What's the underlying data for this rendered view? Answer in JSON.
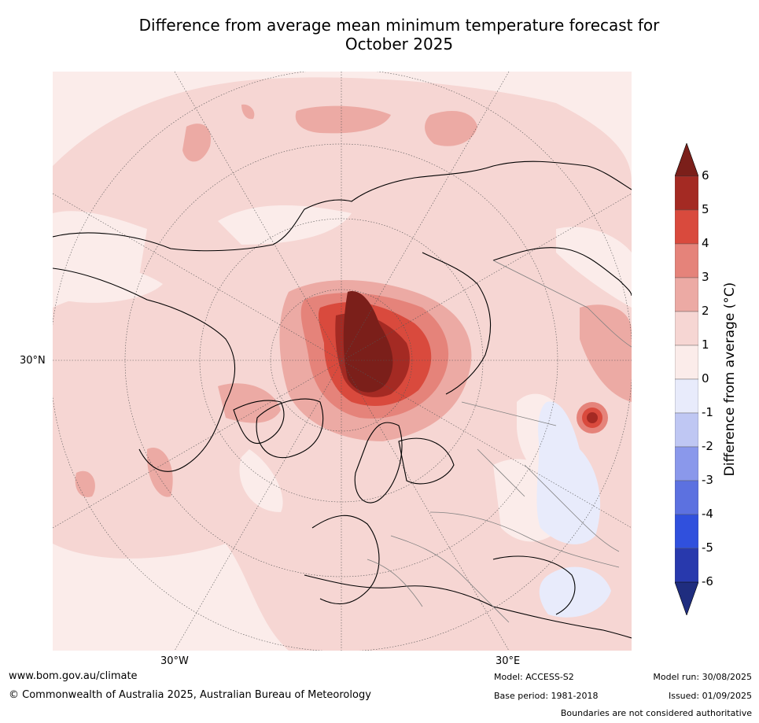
{
  "title_line1": "Difference from average mean minimum temperature forecast for",
  "title_line2": "October 2025",
  "map": {
    "lat_label": "30°N",
    "lon_label_west": "30°W",
    "lon_label_east": "30°E",
    "projection": "north polar stereographic",
    "land_color": "#f6d6d3",
    "ocean_color": "#fbecea",
    "coastline_color": "#000000",
    "border_color": "#808080"
  },
  "colorbar": {
    "label": "Difference from average (°C)",
    "ticks": [
      "6",
      "5",
      "4",
      "3",
      "2",
      "1",
      "0",
      "-1",
      "-2",
      "-3",
      "-4",
      "-5",
      "-6"
    ],
    "colors": [
      "#7b1f1a",
      "#a42a23",
      "#d94a3d",
      "#e5837a",
      "#ecaaa4",
      "#f6d6d3",
      "#fbecea",
      "#e8ebfb",
      "#bfc7f3",
      "#8a98eb",
      "#5c71e0",
      "#3050dd",
      "#2839ad",
      "#1f2d7f"
    ]
  },
  "footer": {
    "website": "www.bom.gov.au/climate",
    "copyright": "© Commonwealth of Australia 2025, Australian Bureau of Meteorology",
    "model": "Model: ACCESS-S2",
    "base_period": "Base period: 1981-2018",
    "model_run": "Model run: 30/08/2025",
    "issued": "Issued: 01/09/2025",
    "disclaimer": "Boundaries are not considered authoritative"
  }
}
